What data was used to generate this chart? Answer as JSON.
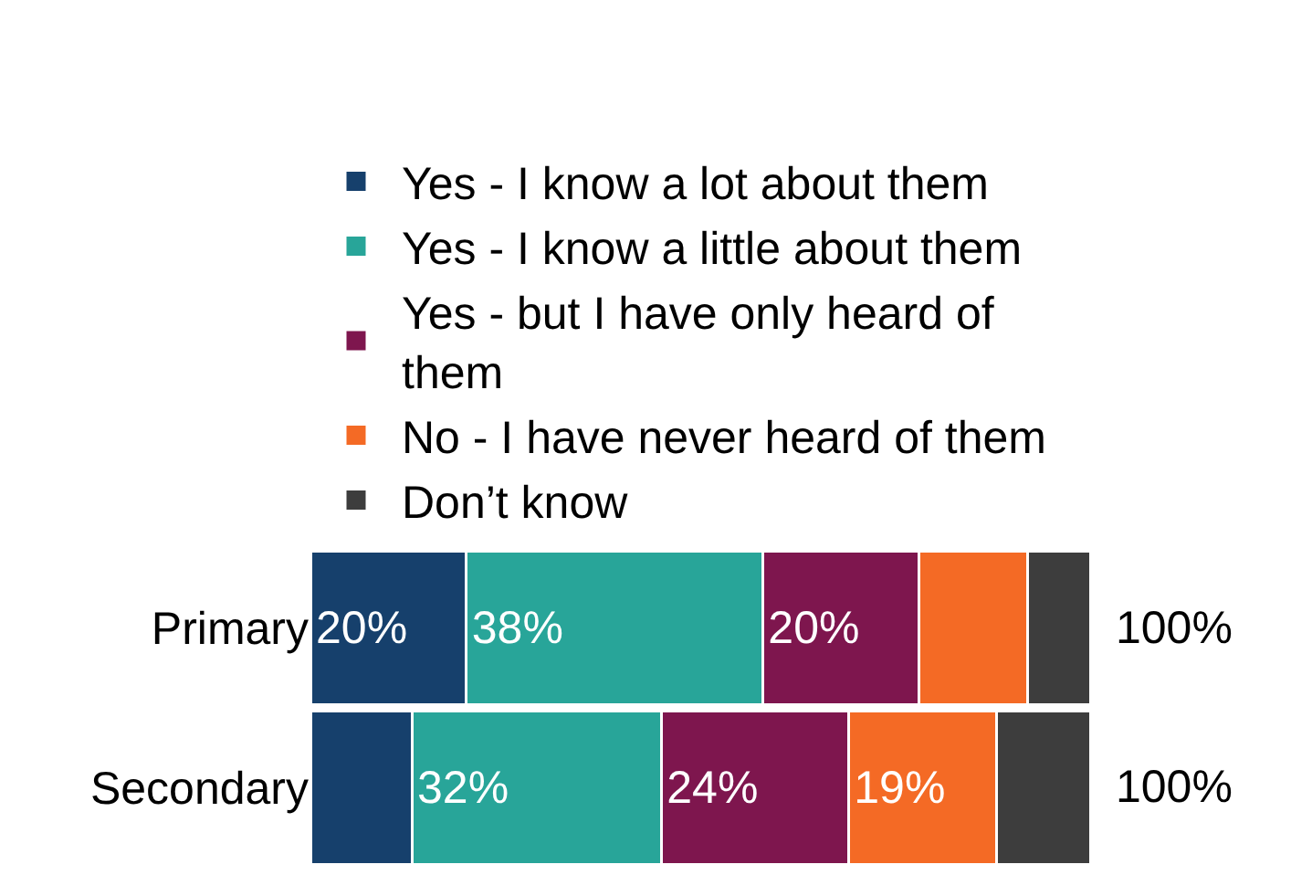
{
  "chart_data": {
    "type": "bar",
    "orientation": "horizontal",
    "stacked": true,
    "categories": [
      "Primary",
      "Secondary"
    ],
    "legend": "top",
    "series": [
      {
        "name": "Yes - I know a lot about them",
        "color": "#16406c",
        "values": [
          20,
          13
        ],
        "value_labels": [
          "20%",
          null
        ]
      },
      {
        "name": "Yes - I know a little about them",
        "color": "#28a599",
        "values": [
          38,
          32
        ],
        "value_labels": [
          "38%",
          "32%"
        ]
      },
      {
        "name": "Yes - but I have only heard of them",
        "color": "#7e164e",
        "values": [
          20,
          24
        ],
        "value_labels": [
          "20%",
          "24%"
        ]
      },
      {
        "name": "No - I have never heard of them",
        "color": "#f46a25",
        "values": [
          14,
          19
        ],
        "value_labels": [
          null,
          "19%"
        ]
      },
      {
        "name": "Don’t know",
        "color": "#3d3d3d",
        "values": [
          8,
          12
        ],
        "value_labels": [
          null,
          null
        ]
      }
    ],
    "totals": [
      "100%",
      "100%"
    ]
  }
}
